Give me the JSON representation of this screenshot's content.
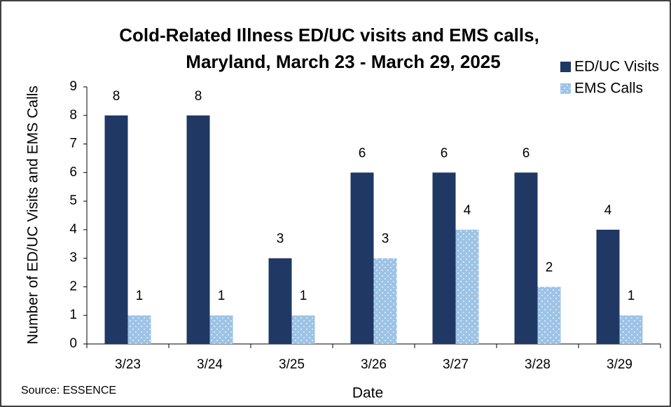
{
  "chart_data": {
    "type": "bar",
    "title": [
      "Cold-Related Illness ED/UC visits and EMS calls,",
      "Maryland, March 23 - March 29, 2025"
    ],
    "categories": [
      "3/23",
      "3/24",
      "3/25",
      "3/26",
      "3/27",
      "3/28",
      "3/29"
    ],
    "series": [
      {
        "name": "ED/UC Visits",
        "color": "#1f3864",
        "values": [
          8,
          8,
          3,
          6,
          6,
          6,
          4
        ]
      },
      {
        "name": "EMS Calls",
        "color": "#9dc3e6",
        "values": [
          1,
          1,
          1,
          3,
          4,
          2,
          1
        ]
      }
    ],
    "ylim": [
      0,
      9
    ],
    "yticks": [
      0,
      1,
      2,
      3,
      4,
      5,
      6,
      7,
      8,
      9
    ],
    "y_label": "Number of ED/UC Visits and EMS Calls",
    "x_label": "Date",
    "source": "Source: ESSENCE",
    "legend": "top-right",
    "grid": false
  }
}
